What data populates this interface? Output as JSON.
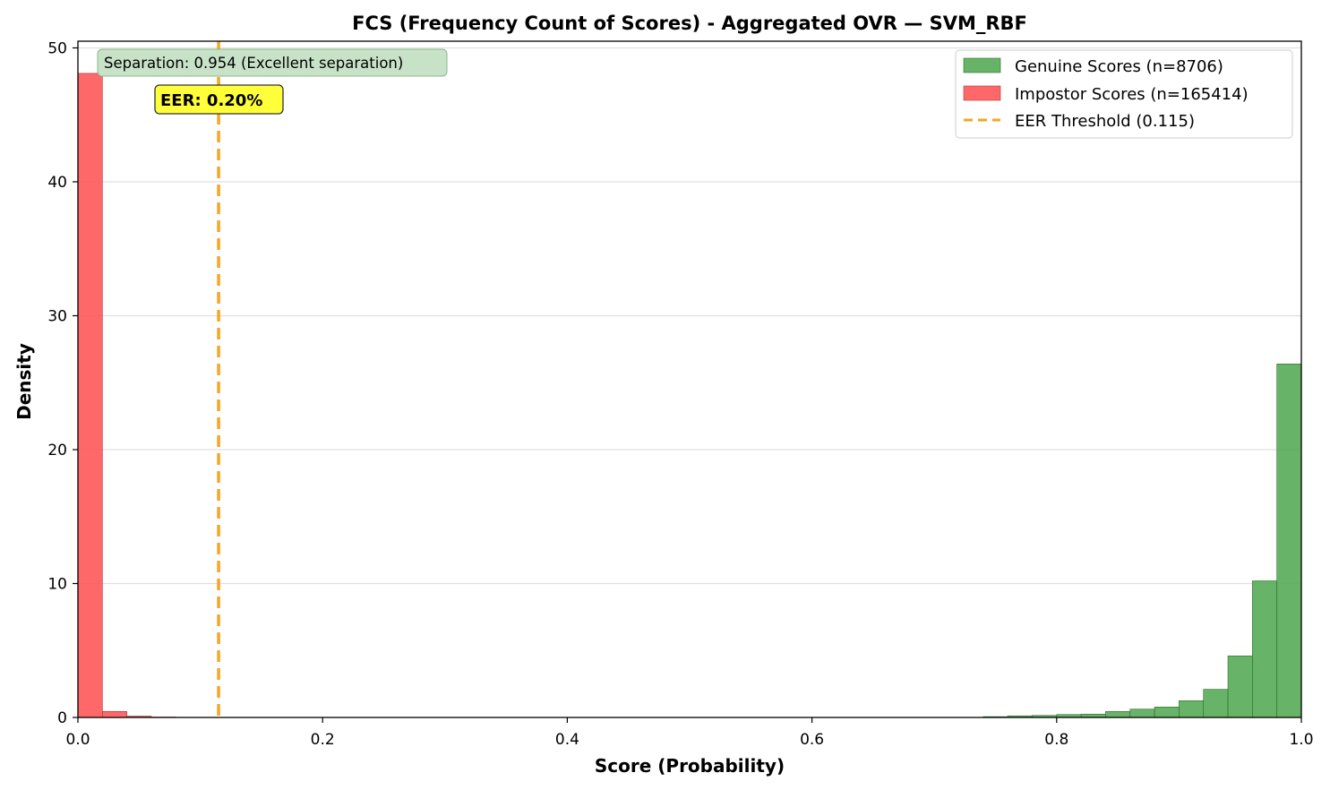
{
  "chart_data": {
    "type": "bar",
    "title": "FCS (Frequency Count of Scores) - Aggregated OVR — SVM_RBF",
    "xlabel": "Score (Probability)",
    "ylabel": "Density",
    "xlim": [
      0.0,
      1.0
    ],
    "ylim": [
      0,
      50.5
    ],
    "x_ticks": [
      0.0,
      0.2,
      0.4,
      0.6,
      0.8,
      1.0
    ],
    "x_tick_labels": [
      "0.0",
      "0.2",
      "0.4",
      "0.6",
      "0.8",
      "1.0"
    ],
    "y_ticks": [
      0,
      10,
      20,
      30,
      40,
      50
    ],
    "y_tick_labels": [
      "0",
      "10",
      "20",
      "30",
      "40",
      "50"
    ],
    "grid": "horizontal",
    "bin_width": 0.02,
    "series": [
      {
        "name": "Genuine Scores (n=8706)",
        "color": "#4ca64c",
        "bins": [
          {
            "x": 0.74,
            "value": 0.06
          },
          {
            "x": 0.76,
            "value": 0.12
          },
          {
            "x": 0.78,
            "value": 0.15
          },
          {
            "x": 0.8,
            "value": 0.22
          },
          {
            "x": 0.82,
            "value": 0.25
          },
          {
            "x": 0.84,
            "value": 0.45
          },
          {
            "x": 0.86,
            "value": 0.62
          },
          {
            "x": 0.88,
            "value": 0.78
          },
          {
            "x": 0.9,
            "value": 1.25
          },
          {
            "x": 0.92,
            "value": 2.1
          },
          {
            "x": 0.94,
            "value": 4.6
          },
          {
            "x": 0.96,
            "value": 10.2
          },
          {
            "x": 0.98,
            "value": 26.4
          }
        ]
      },
      {
        "name": "Impostor Scores (n=165414)",
        "color": "#ff4d4d",
        "bins": [
          {
            "x": 0.0,
            "value": 48.1
          },
          {
            "x": 0.02,
            "value": 0.45
          },
          {
            "x": 0.04,
            "value": 0.1
          },
          {
            "x": 0.06,
            "value": 0.03
          }
        ]
      }
    ],
    "threshold": {
      "name": "EER Threshold (0.115)",
      "x": 0.115,
      "color": "#f5a623"
    },
    "annotations": {
      "separation": "Separation: 0.954 (Excellent separation)",
      "eer": "EER: 0.20%"
    },
    "legend_position": "top-right"
  }
}
